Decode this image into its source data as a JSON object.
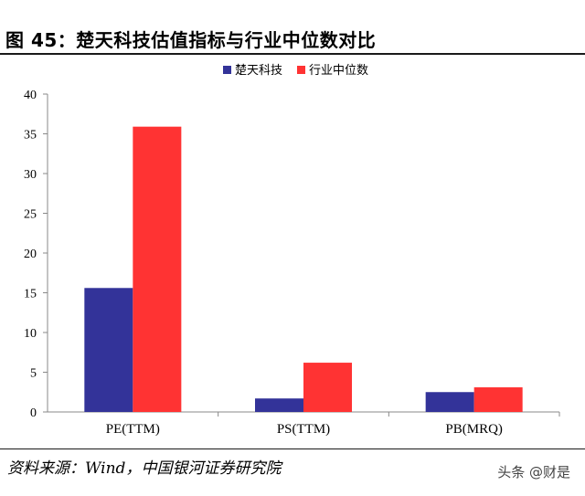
{
  "figure": {
    "title": "图 45：楚天科技估值指标与行业中位数对比",
    "source": "资料来源：Wind，中国银河证券研究院",
    "watermark": "头条 @财是"
  },
  "chart_data": {
    "type": "bar",
    "categories": [
      "PE(TTM)",
      "PS(TTM)",
      "PB(MRQ)"
    ],
    "series": [
      {
        "name": "楚天科技",
        "values": [
          15.6,
          1.7,
          2.5
        ],
        "color": "#333399"
      },
      {
        "name": "行业中位数",
        "values": [
          35.9,
          6.2,
          3.1
        ],
        "color": "#ff3333"
      }
    ],
    "ylim": [
      0,
      40
    ],
    "yticks": [
      0,
      5,
      10,
      15,
      20,
      25,
      30,
      35,
      40
    ],
    "grid": false,
    "legend": "top-center"
  }
}
